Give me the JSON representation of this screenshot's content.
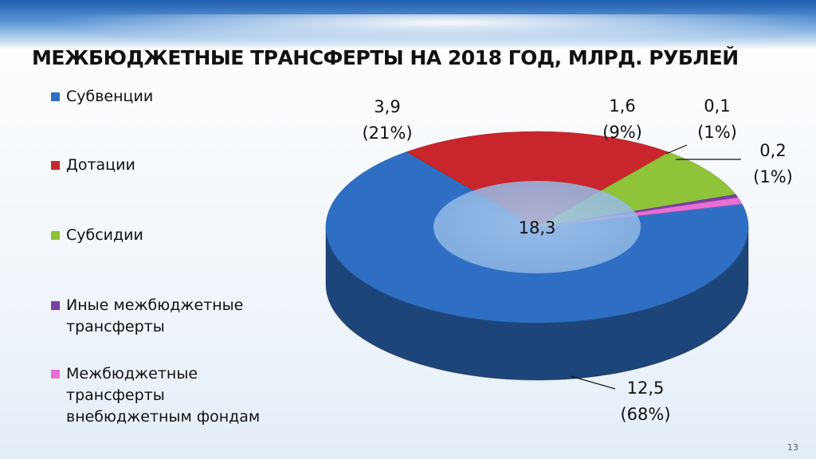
{
  "slide": {
    "title": "МЕЖБЮДЖЕТНЫЕ ТРАНСФЕРТЫ НА 2018 ГОД, МЛРД. РУБЛЕЙ",
    "page_number": "13"
  },
  "chart_data": {
    "type": "pie",
    "style": "3d-donut",
    "title": "МЕЖБЮДЖЕТНЫЕ ТРАНСФЕРТЫ НА 2018 ГОД, МЛРД. РУБЛЕЙ",
    "total_label": "18,3",
    "legend_position": "left",
    "slices": [
      {
        "name": "Субвенции",
        "value": 12.5,
        "value_label": "12,5",
        "percent_label": "(68%)",
        "color": "#2e6fc4"
      },
      {
        "name": "Дотации",
        "value": 3.9,
        "value_label": "3,9",
        "percent_label": "(21%)",
        "color": "#c8262c"
      },
      {
        "name": "Субсидии",
        "value": 1.6,
        "value_label": "1,6",
        "percent_label": "(9%)",
        "color": "#8fc43a"
      },
      {
        "name": "Иные межбюджетные трансферты",
        "value": 0.1,
        "value_label": "0,1",
        "percent_label": "(1%)",
        "color": "#7a3fa6"
      },
      {
        "name": "Межбюджетные трансферты внебюджетным фондам",
        "value": 0.2,
        "value_label": "0,2",
        "percent_label": "(1%)",
        "color": "#e86fd6"
      }
    ]
  }
}
